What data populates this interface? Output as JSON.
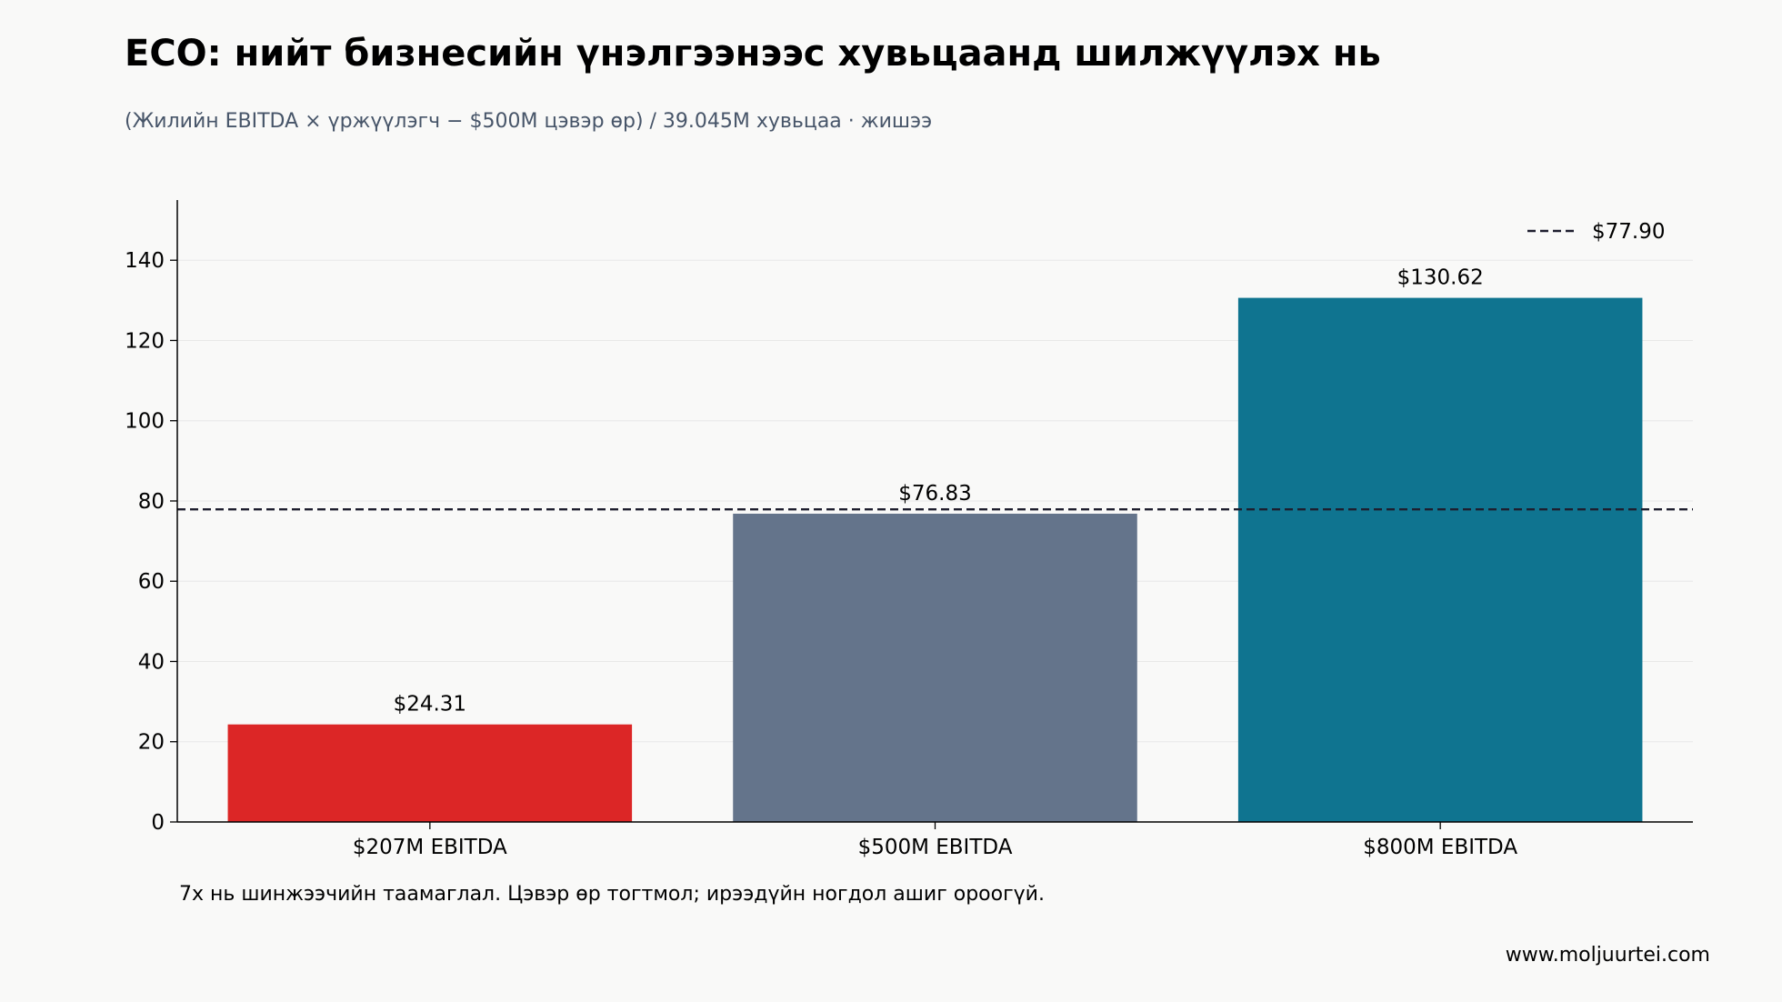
{
  "header": {
    "title": "ECO: нийт бизнесийн үнэлгээнээс хувьцаанд шилжүүлэх нь",
    "subtitle": "(Жилийн EBITDA × үржүүлэгч − $500M цэвэр өр) / 39.045M хувьцаа · жишээ"
  },
  "footer": {
    "note": "7x нь шинжээчийн таамаглал. Цэвэр өр тогтмол; ирээдүйн ногдол ашиг ороогүй.",
    "website": "www.moljuurtei.com"
  },
  "chart_data": {
    "type": "bar",
    "categories": [
      "$207M EBITDA",
      "$500M EBITDA",
      "$800M EBITDA"
    ],
    "values": [
      24.31,
      76.83,
      130.62
    ],
    "value_labels": [
      "$24.31",
      "$76.83",
      "$130.62"
    ],
    "bar_colors": [
      "#dc2626",
      "#64748b",
      "#0f7490"
    ],
    "ylim": [
      0,
      155
    ],
    "yticks": [
      0,
      20,
      40,
      60,
      80,
      100,
      120,
      140
    ],
    "grid": true,
    "reference_line": {
      "value": 77.9,
      "label": "$77.90",
      "color": "#1e1e2e",
      "style": "dashed"
    },
    "legend_position": "top-right"
  }
}
